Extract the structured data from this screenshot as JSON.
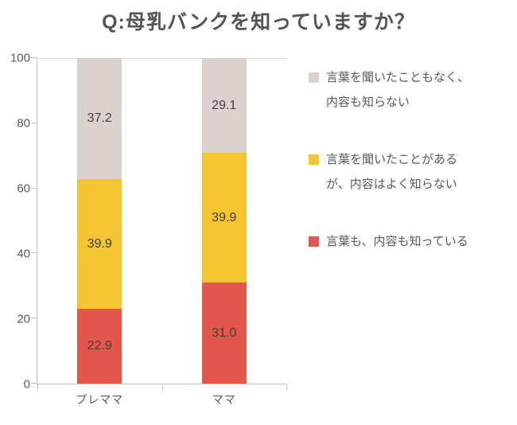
{
  "title": "Q:母乳バンクを知っていますか？",
  "chart_data": {
    "type": "bar",
    "stacked": true,
    "title": "Q:母乳バンクを知っていますか？",
    "categories": [
      "プレママ",
      "ママ"
    ],
    "series": [
      {
        "name": "言葉も、内容も知っている",
        "color": "#E4564B",
        "values": [
          22.9,
          31.0
        ]
      },
      {
        "name": "言葉を聞いたことがあるが、内容はよく知らない",
        "color": "#F5C431",
        "values": [
          39.9,
          39.9
        ]
      },
      {
        "name": "言葉を聞いたこともなく、内容も知らない",
        "color": "#DBD2D0",
        "values": [
          37.2,
          29.1
        ]
      }
    ],
    "xlabel": "",
    "ylabel": "",
    "ylim": [
      0,
      100
    ],
    "yticks": [
      0,
      20,
      40,
      60,
      80,
      100
    ],
    "grid": false,
    "legend_position": "right",
    "data_label_format": "one_decimal"
  },
  "legend": {
    "items": [
      {
        "lines": [
          "言葉を聞いたこともなく、",
          "内容も知らない"
        ],
        "color": "#DBD2D0"
      },
      {
        "lines": [
          "言葉を聞いたことがある",
          "が、内容はよく知らない"
        ],
        "color": "#F5C431"
      },
      {
        "lines": [
          "言葉も、内容も知っている"
        ],
        "color": "#E4564B"
      }
    ]
  },
  "colors": {
    "axis": "#BFBFBF",
    "gridline": "#D9D9D9",
    "tick_text": "#595959",
    "data_label": "#404040",
    "title": "#545454"
  }
}
